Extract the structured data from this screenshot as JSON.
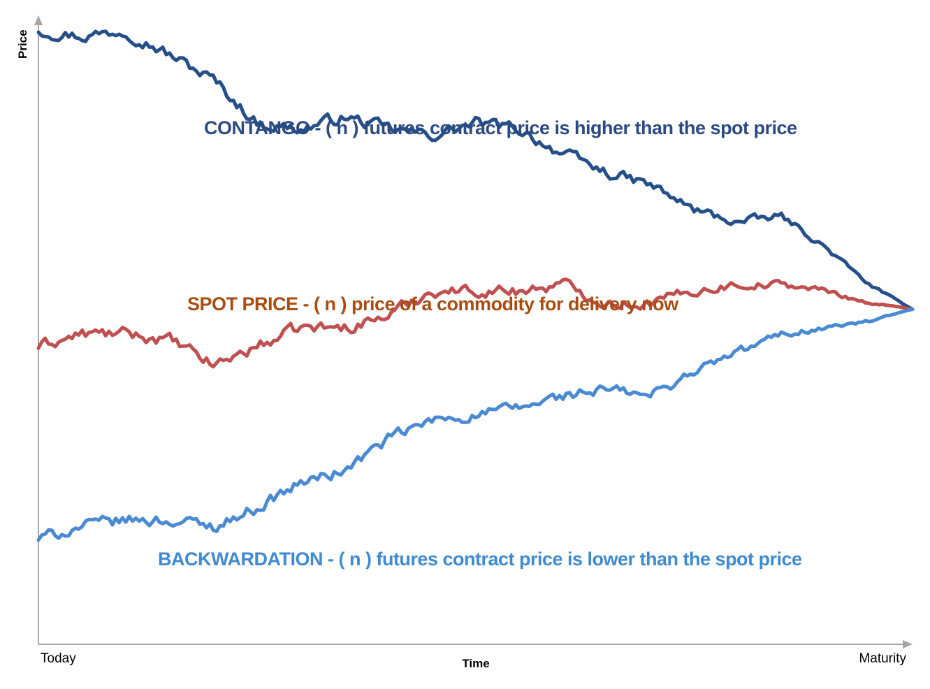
{
  "chart_data": {
    "type": "line",
    "xlabel": "Time",
    "ylabel": "Price",
    "x_tick_labels": [
      "Today",
      "Maturity"
    ],
    "xlim": [
      0,
      100
    ],
    "ylim": [
      0,
      100
    ],
    "x": [
      0,
      5,
      10,
      15,
      20,
      25,
      30,
      35,
      40,
      45,
      50,
      55,
      60,
      65,
      70,
      75,
      80,
      85,
      90,
      95,
      100
    ],
    "series": [
      {
        "key": "contango",
        "color": "#244f88",
        "values": [
          99,
          98,
          99,
          95,
          91,
          84,
          83,
          85,
          83,
          82,
          84,
          83,
          79,
          76,
          74,
          70,
          68,
          69,
          64,
          58,
          54
        ]
      },
      {
        "key": "spot",
        "color": "#c05050",
        "values": [
          48,
          50,
          50,
          49,
          45,
          48,
          51,
          51,
          53,
          57,
          57,
          57,
          58,
          55,
          55,
          57,
          58,
          58,
          57,
          55,
          54
        ]
      },
      {
        "key": "backwardation",
        "color": "#4a8ad2",
        "values": [
          17,
          19,
          20,
          20,
          19,
          22,
          26,
          28,
          33,
          36,
          37,
          38,
          40,
          41,
          40,
          44,
          47,
          50,
          51,
          52,
          54
        ]
      }
    ],
    "annotations": [
      {
        "series": "contango",
        "text": "CONTANGO - ( n ) futures contract price is higher than the spot price",
        "color": "#2c4a82"
      },
      {
        "series": "spot",
        "text": "SPOT PRICE - ( n ) price of a commodity for delivery now",
        "color": "#a84d12"
      },
      {
        "series": "backwardation",
        "text": "BACKWARDATION - ( n ) futures contract price is lower than the spot price",
        "color": "#3f8ad0"
      }
    ],
    "axis_color": "#a6a6a6",
    "grid": false,
    "legend": "none"
  }
}
